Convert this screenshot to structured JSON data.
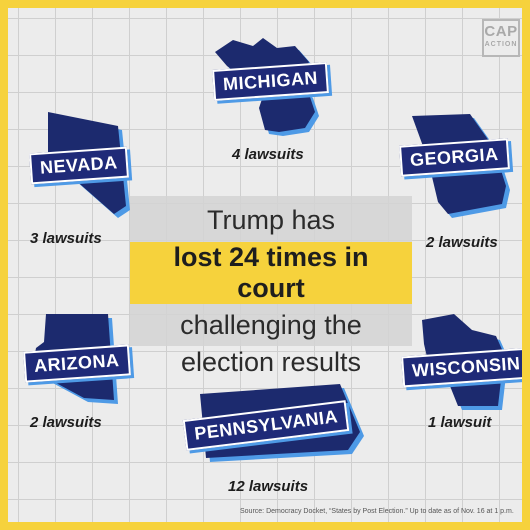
{
  "logo": {
    "line1": "CAP",
    "line2": "ACTION"
  },
  "headline": {
    "line1": "Trump has",
    "highlight": "lost 24 times in court",
    "line3": "challenging the",
    "line4": "election results"
  },
  "states": {
    "michigan": {
      "name": "MICHIGAN",
      "count": "4 lawsuits"
    },
    "nevada": {
      "name": "NEVADA",
      "count": "3 lawsuits"
    },
    "georgia": {
      "name": "GEORGIA",
      "count": "2 lawsuits"
    },
    "arizona": {
      "name": "ARIZONA",
      "count": "2 lawsuits"
    },
    "wisconsin": {
      "name": "WISCONSIN",
      "count": "1 lawsuit"
    },
    "pennsylvania": {
      "name": "PENNSYLVANIA",
      "count": "12 lawsuits"
    }
  },
  "source": "Source: Democracy Docket, “States by Post Election.” Up to date as of Nov. 16 at 1 p.m.",
  "colors": {
    "accent": "#f6d23c",
    "banner": "#1f2a78",
    "banner_shadow": "#4e9ae6",
    "state_fill": "#1c2a6e"
  }
}
